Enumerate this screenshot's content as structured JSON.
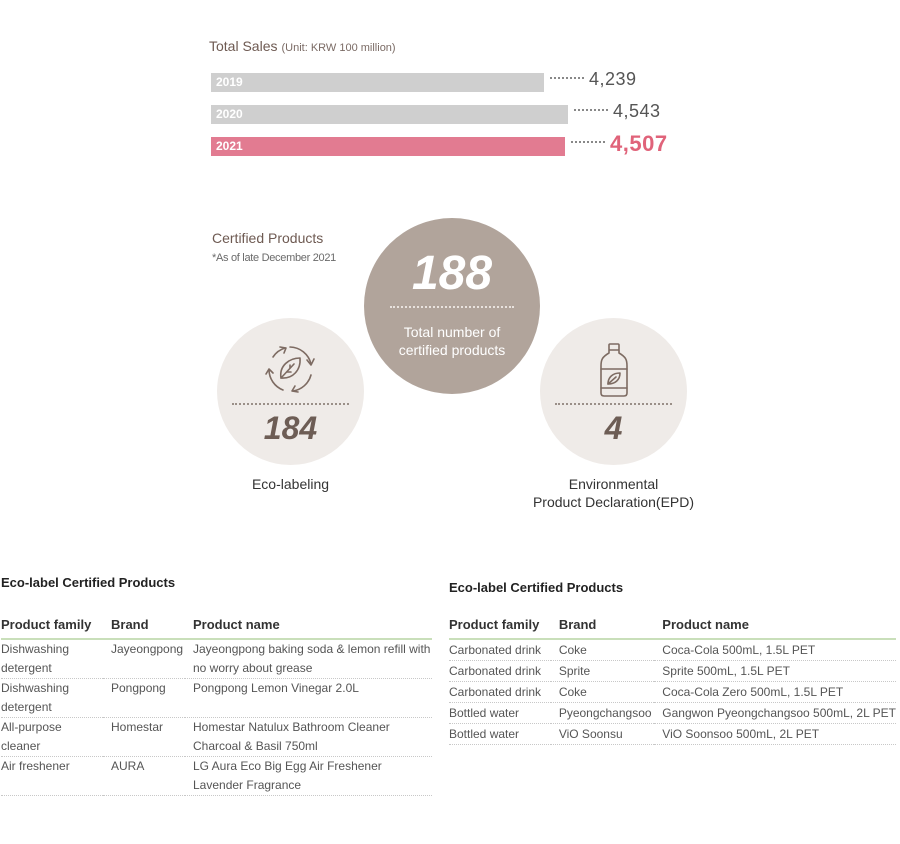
{
  "chart_data": {
    "type": "bar",
    "orientation": "horizontal",
    "title": "Total Sales",
    "unit": "(Unit: KRW 100 million)",
    "categories": [
      "2019",
      "2020",
      "2021"
    ],
    "values": [
      4239,
      4543,
      4507
    ],
    "value_labels": [
      "4,239",
      "4,543",
      "4,507"
    ],
    "highlight": "2021",
    "xlim": [
      0,
      4600
    ]
  },
  "colors": {
    "bar_default": "#cfcfcf",
    "bar_highlight": "#e27b91",
    "value_highlight": "#e0637a",
    "circle_total": "#b1a49b",
    "circle_small": "#efebe8",
    "table_rule": "#c9dfba"
  },
  "certified": {
    "title": "Certified Products",
    "note": "*As of late December 2021",
    "total": {
      "number": "188",
      "label": "Total number of certified products"
    },
    "eco": {
      "icon": "recycle-leaf-icon",
      "number": "184",
      "label": "Eco-labeling"
    },
    "epd": {
      "icon": "bottle-leaf-icon",
      "number": "4",
      "label_line1": "Environmental",
      "label_line2": "Product Declaration(EPD)"
    }
  },
  "table_left": {
    "title": "Eco-label Certified Products",
    "headers": [
      "Product family",
      "Brand",
      "Product name"
    ],
    "rows": [
      [
        "Dishwashing detergent",
        "Jayeongpong",
        "Jayeongpong baking soda & lemon refill with no worry about grease"
      ],
      [
        "Dishwashing detergent",
        "Pongpong",
        "Pongpong Lemon Vinegar 2.0L"
      ],
      [
        "All-purpose cleaner",
        "Homestar",
        "Homestar Natulux Bathroom Cleaner Charcoal & Basil 750ml"
      ],
      [
        "Air freshener",
        "AURA",
        "LG Aura Eco Big Egg Air Freshener Lavender Fragrance"
      ]
    ]
  },
  "table_right": {
    "title": "Eco-label Certified Products",
    "headers": [
      "Product family",
      "Brand",
      "Product name"
    ],
    "rows": [
      [
        "Carbonated drink",
        "Coke",
        "Coca-Cola 500mL, 1.5L PET"
      ],
      [
        "Carbonated drink",
        "Sprite",
        "Sprite 500mL, 1.5L PET"
      ],
      [
        "Carbonated drink",
        "Coke",
        "Coca-Cola Zero 500mL, 1.5L PET"
      ],
      [
        "Bottled water",
        "Pyeongchangsoo",
        "Gangwon Pyeongchangsoo 500mL, 2L PET"
      ],
      [
        "Bottled water",
        "ViO Soonsu",
        "ViO Soonsoo 500mL, 2L PET"
      ]
    ]
  }
}
